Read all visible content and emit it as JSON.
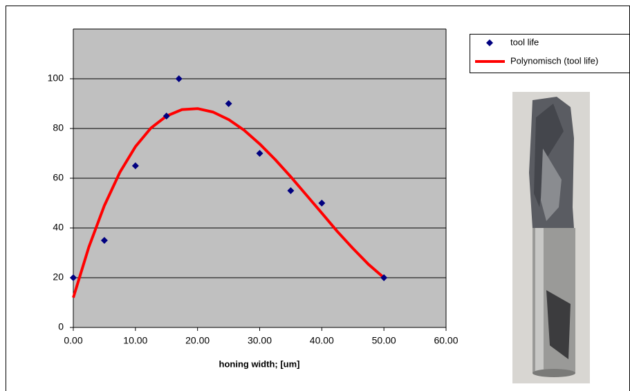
{
  "chart_data": {
    "type": "scatter",
    "x_label": "honing width; [um]",
    "xlim": [
      0,
      60
    ],
    "xticks": [
      {
        "value": 0,
        "label": "0.00"
      },
      {
        "value": 10,
        "label": "10.00"
      },
      {
        "value": 20,
        "label": "20.00"
      },
      {
        "value": 30,
        "label": "30.00"
      },
      {
        "value": 40,
        "label": "40.00"
      },
      {
        "value": 50,
        "label": "50.00"
      },
      {
        "value": 60,
        "label": "60.00"
      }
    ],
    "ylim": [
      0,
      120
    ],
    "yticks": [
      0,
      20,
      40,
      60,
      80,
      100
    ],
    "grid": true,
    "legend": "right",
    "series": [
      {
        "name": "tool life",
        "color": "#000080",
        "style": "marker",
        "x": [
          0,
          5,
          10,
          15,
          17,
          25,
          30,
          35,
          40,
          50
        ],
        "values": [
          20,
          35,
          65,
          85,
          100,
          90,
          70,
          55,
          50,
          20
        ]
      },
      {
        "name": "Polynomisch (tool life)",
        "color": "#ff0000",
        "style": "line",
        "x": [
          0,
          2.5,
          5,
          7.5,
          10,
          12.5,
          15,
          17.5,
          20,
          22.5,
          25,
          27.5,
          30,
          32.5,
          35,
          37.5,
          40,
          42.5,
          45,
          47.5,
          50
        ],
        "values": [
          12,
          32.3,
          49,
          62.4,
          72.7,
          80.2,
          85,
          87.6,
          88,
          86.6,
          83.6,
          79.3,
          73.8,
          67.5,
          60.6,
          53.3,
          46,
          38.6,
          31.8,
          25.4,
          20
        ]
      }
    ]
  }
}
